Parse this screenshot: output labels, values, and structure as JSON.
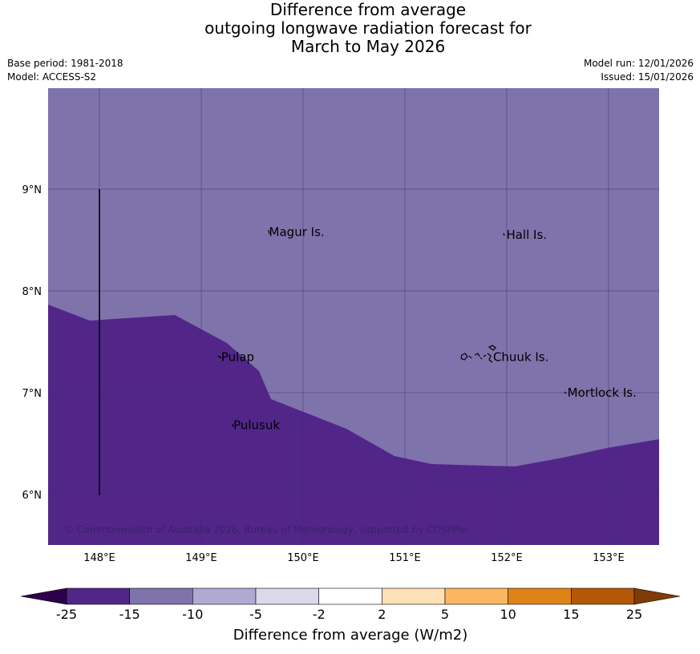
{
  "header": {
    "title_lines": [
      "Difference from average",
      "outgoing longwave radiation forecast for",
      "March to May 2026"
    ],
    "base_period": "Base period: 1981-2018",
    "model": "Model: ACCESS-S2",
    "model_run": "Model run: 12/01/2026",
    "issued": "Issued: 15/01/2026"
  },
  "map": {
    "lon_range": [
      147.5,
      153.5
    ],
    "lat_range": [
      5.5,
      10.0
    ],
    "lon_ticks": [
      "148°E",
      "149°E",
      "150°E",
      "151°E",
      "152°E",
      "153°E"
    ],
    "lat_ticks": [
      "9°N",
      "8°N",
      "7°N",
      "6°N"
    ],
    "places": [
      {
        "name": "Magur Is.",
        "lon": 149.65,
        "lat": 8.58
      },
      {
        "name": "Hall Is.",
        "lon": 151.98,
        "lat": 8.55
      },
      {
        "name": "Pulap",
        "lon": 149.18,
        "lat": 7.35
      },
      {
        "name": "Chuuk Is.",
        "lon": 151.85,
        "lat": 7.35
      },
      {
        "name": "Mortlock Is.",
        "lon": 152.58,
        "lat": 7.0
      },
      {
        "name": "Pulusuk",
        "lon": 149.3,
        "lat": 6.68
      }
    ],
    "copyright": "© Commonwealth of Australia 2026, Bureau of Meteorology, supported by COSPPac",
    "zone_upper_color": "#7f73ab",
    "zone_lower_color": "#522689",
    "grid_color": "#3d2a6a"
  },
  "colorbar": {
    "title": "Difference from average (W/m2)",
    "tick_labels": [
      "-25",
      "-15",
      "-10",
      "-5",
      "-2",
      "2",
      "5",
      "10",
      "15",
      "25"
    ],
    "bin_colors": [
      "#522689",
      "#7f73ab",
      "#b0aad2",
      "#d9d9ea",
      "#ffffff",
      "#fde0b6",
      "#fcb660",
      "#e08316",
      "#b35807"
    ],
    "under_color": "#2d004b",
    "over_color": "#7f3b08"
  }
}
